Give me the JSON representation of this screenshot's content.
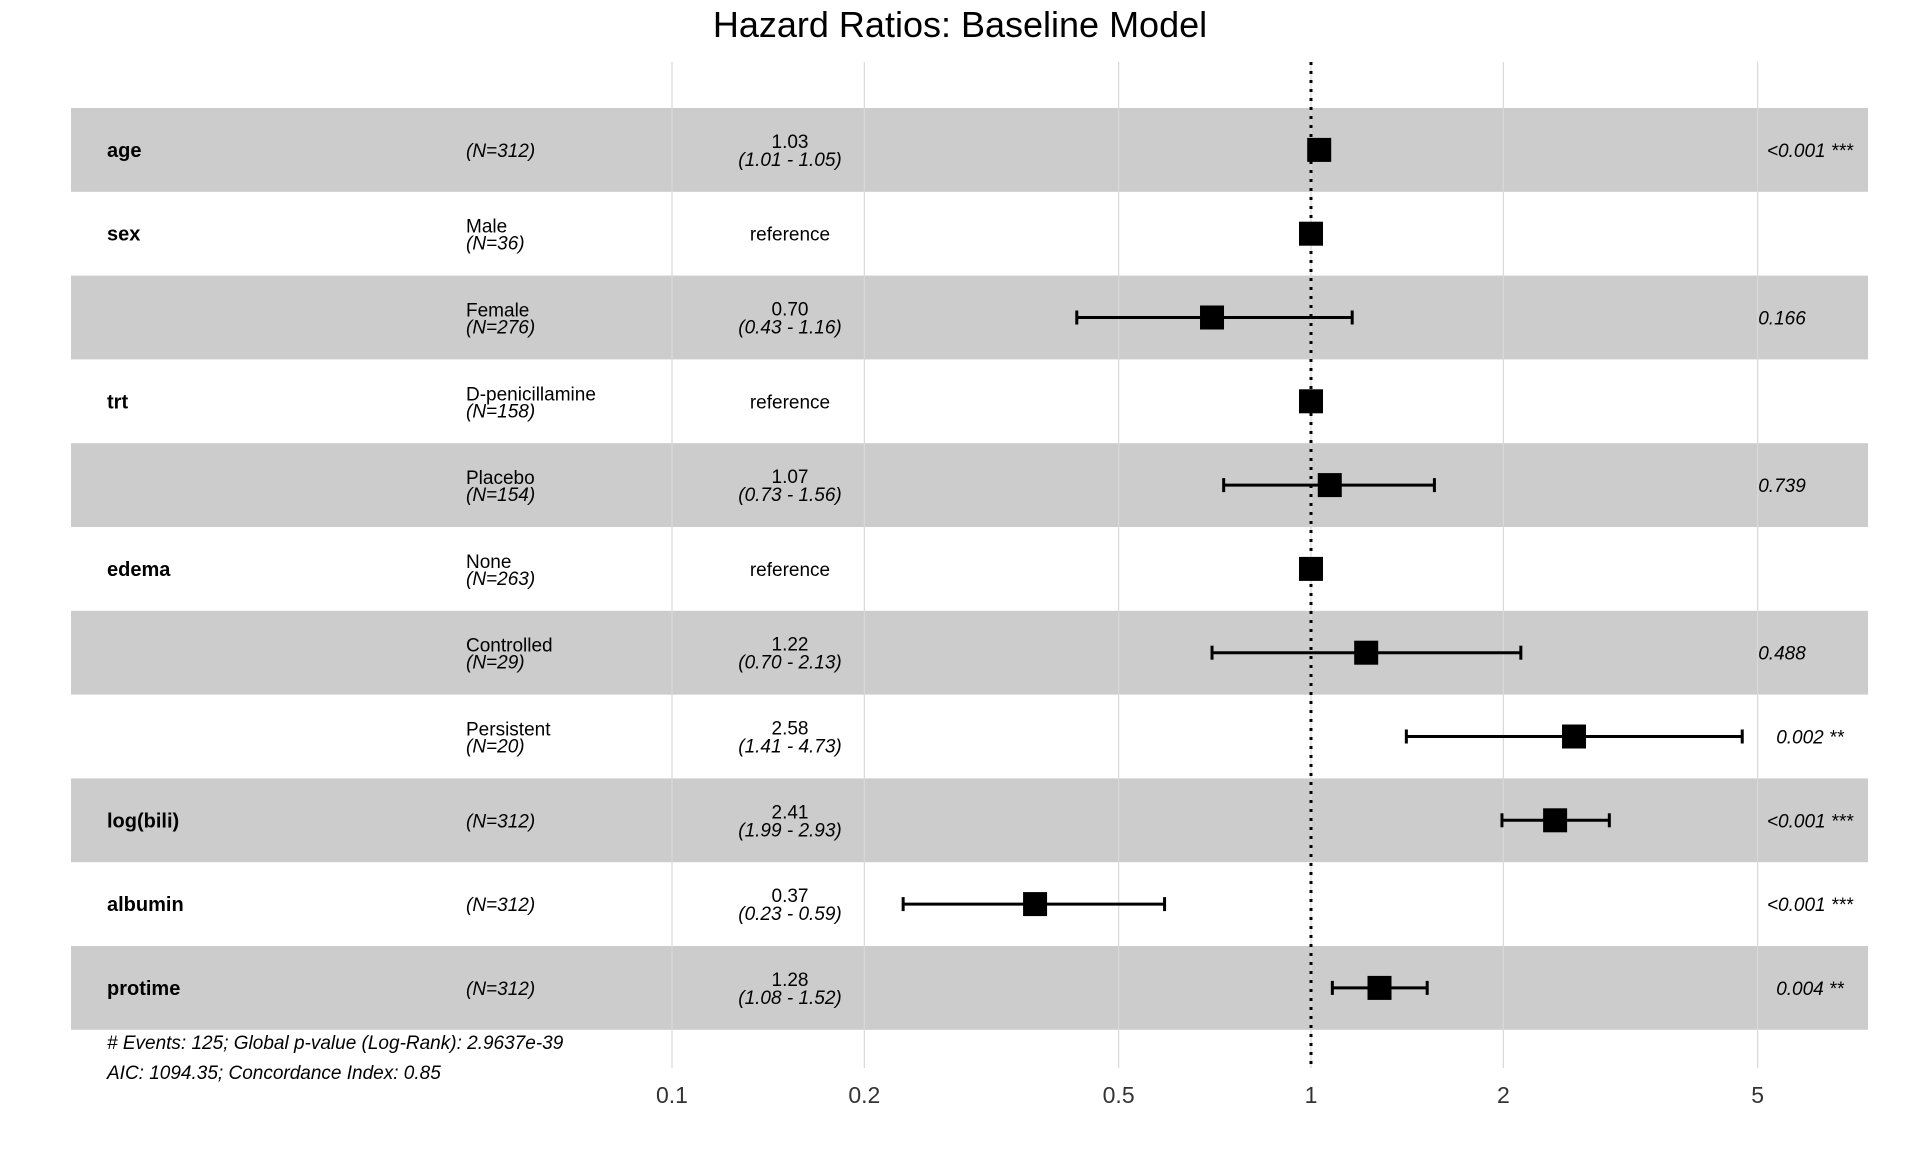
{
  "title": "Hazard Ratios: Baseline Model",
  "footer": {
    "line1": "# Events: 125; Global p-value (Log-Rank): 2.9637e-39",
    "line2": "AIC: 1094.35; Concordance Index: 0.85"
  },
  "chart_data": {
    "type": "forest",
    "title": "Hazard Ratios: Baseline Model",
    "x_scale": "log",
    "x_ticks": [
      0.1,
      0.2,
      0.5,
      1,
      2,
      5
    ],
    "x_tick_labels": [
      "0.1",
      "0.2",
      "0.5",
      "1",
      "2",
      "5"
    ],
    "reference_line": 1,
    "row_shading": "alternating",
    "colors": {
      "shade": "#cccccc",
      "marker": "#000000",
      "grid": "#d9d9d9"
    },
    "rows": [
      {
        "variable": "age",
        "level": "",
        "n": "(N=312)",
        "estimate_text": "1.03",
        "ci_text": "(1.01 - 1.05)",
        "p": "<0.001 ***",
        "hr": 1.03,
        "lo": 1.01,
        "hi": 1.05,
        "shaded": true
      },
      {
        "variable": "sex",
        "level": "Male",
        "n": "(N=36)",
        "estimate_text": "reference",
        "ci_text": "",
        "p": "",
        "hr": 1.0,
        "lo": null,
        "hi": null,
        "shaded": false
      },
      {
        "variable": "",
        "level": "Female",
        "n": "(N=276)",
        "estimate_text": "0.70",
        "ci_text": "(0.43 - 1.16)",
        "p": "0.166",
        "hr": 0.7,
        "lo": 0.43,
        "hi": 1.16,
        "shaded": true
      },
      {
        "variable": "trt",
        "level": "D-penicillamine",
        "n": "(N=158)",
        "estimate_text": "reference",
        "ci_text": "",
        "p": "",
        "hr": 1.0,
        "lo": null,
        "hi": null,
        "shaded": false
      },
      {
        "variable": "",
        "level": "Placebo",
        "n": "(N=154)",
        "estimate_text": "1.07",
        "ci_text": "(0.73 - 1.56)",
        "p": "0.739",
        "hr": 1.07,
        "lo": 0.73,
        "hi": 1.56,
        "shaded": true
      },
      {
        "variable": "edema",
        "level": "None",
        "n": "(N=263)",
        "estimate_text": "reference",
        "ci_text": "",
        "p": "",
        "hr": 1.0,
        "lo": null,
        "hi": null,
        "shaded": false
      },
      {
        "variable": "",
        "level": "Controlled",
        "n": "(N=29)",
        "estimate_text": "1.22",
        "ci_text": "(0.70 - 2.13)",
        "p": "0.488",
        "hr": 1.22,
        "lo": 0.7,
        "hi": 2.13,
        "shaded": true
      },
      {
        "variable": "",
        "level": "Persistent",
        "n": "(N=20)",
        "estimate_text": "2.58",
        "ci_text": "(1.41 - 4.73)",
        "p": "0.002 **",
        "hr": 2.58,
        "lo": 1.41,
        "hi": 4.73,
        "shaded": false
      },
      {
        "variable": "log(bili)",
        "level": "",
        "n": "(N=312)",
        "estimate_text": "2.41",
        "ci_text": "(1.99 - 2.93)",
        "p": "<0.001 ***",
        "hr": 2.41,
        "lo": 1.99,
        "hi": 2.93,
        "shaded": true
      },
      {
        "variable": "albumin",
        "level": "",
        "n": "(N=312)",
        "estimate_text": "0.37",
        "ci_text": "(0.23 - 0.59)",
        "p": "<0.001 ***",
        "hr": 0.37,
        "lo": 0.23,
        "hi": 0.59,
        "shaded": false
      },
      {
        "variable": "protime",
        "level": "",
        "n": "(N=312)",
        "estimate_text": "1.28",
        "ci_text": "(1.08 - 1.52)",
        "p": "0.004 **",
        "hr": 1.28,
        "lo": 1.08,
        "hi": 1.52,
        "shaded": true
      }
    ]
  }
}
